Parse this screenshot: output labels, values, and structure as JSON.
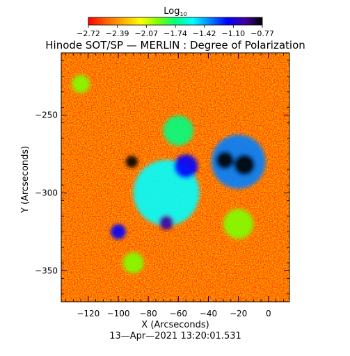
{
  "chart_data": {
    "type": "heatmap",
    "title": "Hinode SOT/SP — MERLIN : Degree of Polarization",
    "xlabel": "X (Arcseconds)",
    "ylabel": "Y (Arcseconds)",
    "footer": "13—Apr—2021 13:20:01.531",
    "colorbar": {
      "title": "Log",
      "title_subscript": "10",
      "tick_labels": [
        "−2.72",
        "−2.39",
        "−2.07",
        "−1.74",
        "−1.42",
        "−1.10",
        "−0.77"
      ],
      "vmin": -2.72,
      "vmax": -0.77,
      "colormap": [
        "#ff0000",
        "#ff6000",
        "#ffb000",
        "#ffff00",
        "#80ff00",
        "#00ff80",
        "#00ffff",
        "#0080ff",
        "#0000ff",
        "#4000a0",
        "#000000"
      ]
    },
    "x_range": [
      -138,
      14
    ],
    "y_range": [
      -370,
      -210
    ],
    "x_ticks": [
      -120,
      -100,
      -80,
      -60,
      -40,
      -20,
      0
    ],
    "x_tick_labels": [
      "−120",
      "−100",
      "−80",
      "−60",
      "−40",
      "−20",
      "0"
    ],
    "y_ticks": [
      -250,
      -300,
      -350
    ],
    "y_tick_labels": [
      "−250",
      "−300",
      "−350"
    ],
    "features": [
      {
        "x": -91,
        "y": -280,
        "r": 4,
        "value": -0.85
      },
      {
        "x": -16,
        "y": -282,
        "r": 7,
        "value": -0.78
      },
      {
        "x": -29,
        "y": -279,
        "r": 6,
        "value": -0.82
      },
      {
        "x": -68,
        "y": -319,
        "r": 5,
        "value": -0.9
      },
      {
        "x": -55,
        "y": -283,
        "r": 8,
        "value": -1.15
      },
      {
        "x": -100,
        "y": -325,
        "r": 5,
        "value": -1.2
      },
      {
        "x": -20,
        "y": -280,
        "r": 18,
        "value": -1.3
      },
      {
        "x": -68,
        "y": -300,
        "r": 22,
        "value": -1.6
      },
      {
        "x": -60,
        "y": -260,
        "r": 10,
        "value": -1.75
      },
      {
        "x": -20,
        "y": -320,
        "r": 10,
        "value": -1.9
      },
      {
        "x": -125,
        "y": -230,
        "r": 6,
        "value": -2.0
      },
      {
        "x": -90,
        "y": -345,
        "r": 7,
        "value": -2.0
      }
    ]
  }
}
